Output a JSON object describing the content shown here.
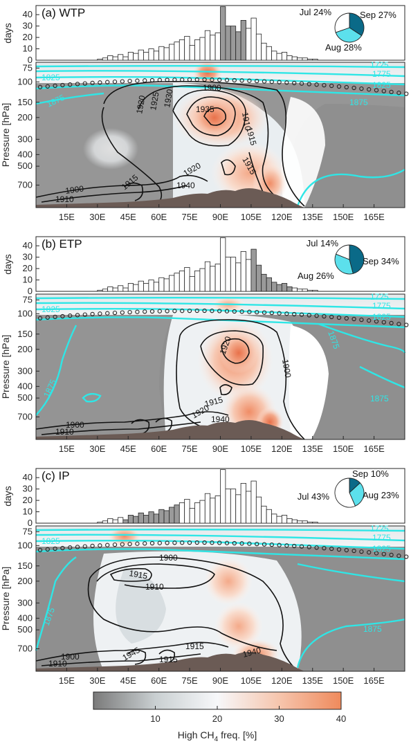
{
  "chart_data": [
    {
      "panel": "(a) WTP",
      "type": "bar",
      "hist_ylabel": "days",
      "hist_yticks": [
        0,
        10,
        20,
        30,
        40
      ],
      "hist_ylim": [
        0,
        48
      ],
      "x_ticks": [
        "15E",
        "30E",
        "45E",
        "60E",
        "75E",
        "90E",
        "105E",
        "120E",
        "135E",
        "150E",
        "165E"
      ],
      "x_tick_values": [
        15,
        30,
        45,
        60,
        75,
        90,
        105,
        120,
        135,
        150,
        165
      ],
      "xlim": [
        0,
        180
      ],
      "bar_start_lon": 30,
      "bar_width_deg": 2.5,
      "values": [
        1,
        2,
        4,
        3,
        5,
        3,
        7,
        6,
        9,
        7,
        10,
        8,
        12,
        11,
        14,
        16,
        18,
        21,
        13,
        18,
        20,
        26,
        22,
        24,
        47,
        30,
        30,
        25,
        35,
        28,
        37,
        23,
        15,
        12,
        8,
        6,
        7,
        4,
        3,
        2,
        2,
        1,
        1
      ],
      "highlight": [
        24,
        25,
        26,
        27,
        28
      ],
      "pie": [
        {
          "label": "Jul 24%",
          "value": 24,
          "color": "#ffffff"
        },
        {
          "label": "Aug 28%",
          "value": 28,
          "color": "#5ce0ec"
        },
        {
          "label": "Sep 27%",
          "value": 27,
          "color": "#0a6a88"
        }
      ],
      "map_ylabel": "Pressure [hPa]",
      "pressure_ticks": [
        "75",
        "100",
        "150",
        "200",
        "300",
        "400",
        "500",
        "700"
      ],
      "cyan_labels": [
        "1725",
        "1775",
        "1825",
        "1825",
        "1875",
        "1875"
      ],
      "black_labels": [
        "1900",
        "1920",
        "1925",
        "1930",
        "1935",
        "1910",
        "1915",
        "1915",
        "1920",
        "1940",
        "1900",
        "1910",
        "1915"
      ]
    },
    {
      "panel": "(b) ETP",
      "type": "bar",
      "hist_ylabel": "days",
      "hist_yticks": [
        0,
        10,
        20,
        30,
        40
      ],
      "hist_ylim": [
        0,
        48
      ],
      "x_ticks": [
        "15E",
        "30E",
        "45E",
        "60E",
        "75E",
        "90E",
        "105E",
        "120E",
        "135E",
        "150E",
        "165E"
      ],
      "x_tick_values": [
        15,
        30,
        45,
        60,
        75,
        90,
        105,
        120,
        135,
        150,
        165
      ],
      "xlim": [
        0,
        180
      ],
      "bar_start_lon": 30,
      "bar_width_deg": 2.5,
      "values": [
        1,
        2,
        4,
        3,
        5,
        3,
        7,
        6,
        9,
        7,
        10,
        8,
        12,
        11,
        14,
        16,
        18,
        21,
        13,
        18,
        20,
        26,
        22,
        24,
        47,
        30,
        30,
        25,
        35,
        28,
        37,
        23,
        15,
        12,
        8,
        6,
        7,
        4,
        3,
        2,
        2,
        1,
        1
      ],
      "highlight": [
        30,
        31,
        32,
        33,
        34,
        35,
        36,
        37
      ],
      "pie": [
        {
          "label": "Jul 14%",
          "value": 14,
          "color": "#ffffff"
        },
        {
          "label": "Aug 26%",
          "value": 26,
          "color": "#5ce0ec"
        },
        {
          "label": "Sep 34%",
          "value": 34,
          "color": "#0a6a88"
        }
      ],
      "map_ylabel": "Pressure [hPa]",
      "pressure_ticks": [
        "75",
        "100",
        "150",
        "200",
        "300",
        "400",
        "500",
        "700"
      ],
      "cyan_labels": [
        "1725",
        "1775",
        "1825",
        "1825",
        "1875",
        "1875",
        "1875"
      ],
      "black_labels": [
        "1920",
        "1900",
        "1915",
        "1920",
        "1900",
        "1910",
        "1940"
      ]
    },
    {
      "panel": "(c) IP",
      "type": "bar",
      "hist_ylabel": "days",
      "hist_yticks": [
        0,
        10,
        20,
        30,
        40
      ],
      "hist_ylim": [
        0,
        48
      ],
      "x_ticks": [
        "15E",
        "30E",
        "45E",
        "60E",
        "75E",
        "90E",
        "105E",
        "120E",
        "135E",
        "150E",
        "165E"
      ],
      "x_tick_values": [
        15,
        30,
        45,
        60,
        75,
        90,
        105,
        120,
        135,
        150,
        165
      ],
      "xlim": [
        0,
        180
      ],
      "bar_start_lon": 30,
      "bar_width_deg": 2.5,
      "values": [
        1,
        2,
        4,
        3,
        5,
        3,
        7,
        6,
        9,
        7,
        10,
        8,
        12,
        11,
        14,
        16,
        18,
        21,
        13,
        18,
        20,
        26,
        22,
        24,
        47,
        30,
        30,
        25,
        35,
        28,
        37,
        23,
        15,
        12,
        8,
        6,
        7,
        4,
        3,
        2,
        2,
        1,
        1
      ],
      "highlight": [
        5,
        6,
        7,
        8,
        9,
        10,
        11,
        12,
        13,
        14,
        15
      ],
      "pie": [
        {
          "label": "Jul 43%",
          "value": 43,
          "color": "#ffffff"
        },
        {
          "label": "Aug 23%",
          "value": 23,
          "color": "#5ce0ec"
        },
        {
          "label": "Sep 10%",
          "value": 10,
          "color": "#0a6a88"
        }
      ],
      "map_ylabel": "Pressure [hPa]",
      "pressure_ticks": [
        "75",
        "100",
        "150",
        "200",
        "300",
        "400",
        "500",
        "700"
      ],
      "cyan_labels": [
        "1725",
        "1775",
        "1825",
        "1825",
        "1875",
        "1875"
      ],
      "black_labels": [
        "1900",
        "1915",
        "1910",
        "1900",
        "1910",
        "1945",
        "1915",
        "1915",
        "1940"
      ]
    }
  ],
  "colorbar": {
    "ticks": [
      "10",
      "20",
      "30",
      "40"
    ],
    "tick_values": [
      10,
      20,
      30,
      40
    ],
    "range": [
      0,
      40
    ],
    "label": "High CH",
    "label_sub": "4",
    "label_tail": " freq. [%]"
  },
  "colors": {
    "cyan": "#2fe6e6",
    "bar_gray": "#9a9a9a",
    "pie_dark": "#0a6a88",
    "pie_light": "#5ce0ec",
    "terrain": "#6b5b55",
    "red_contour": "#e8281e"
  }
}
